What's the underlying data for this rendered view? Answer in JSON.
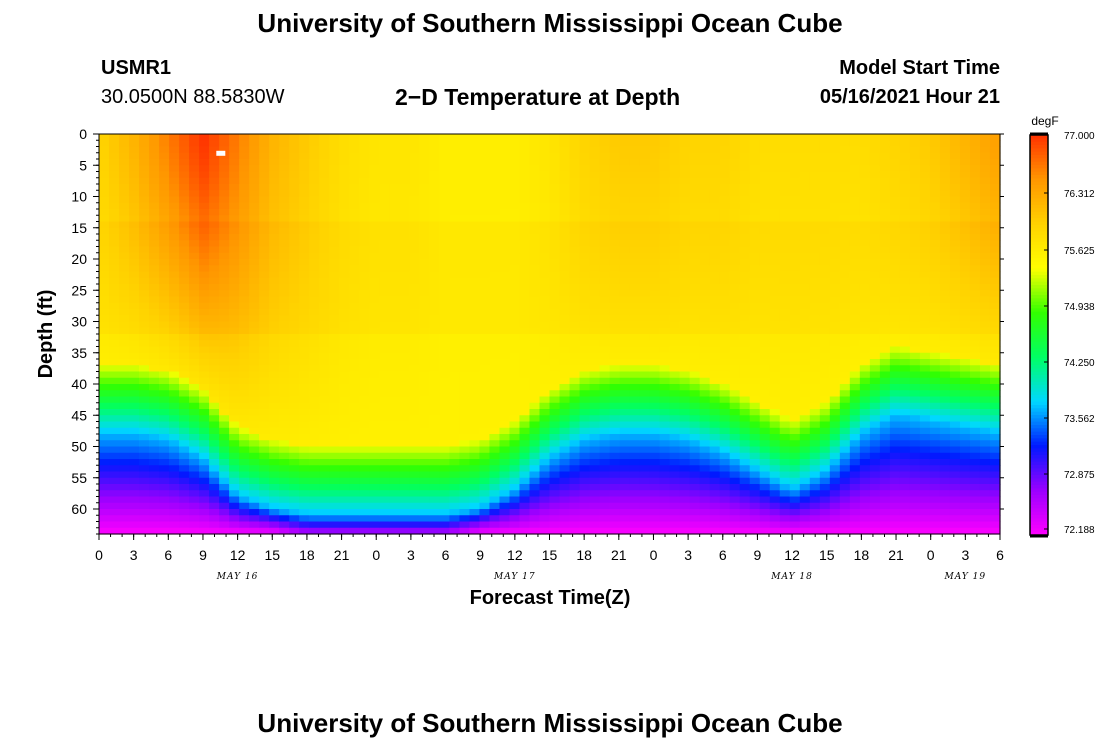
{
  "header": {
    "title_top": "University of Southern Mississippi Ocean Cube",
    "title_bottom": "University of Southern Mississippi Ocean Cube",
    "station_id": "USMR1",
    "station_coords": "30.0500N  88.5830W",
    "plot_title": "2−D Temperature at Depth",
    "model_start_label": "Model Start Time",
    "model_start_value": "05/16/2021 Hour 21"
  },
  "chart_data": {
    "type": "heatmap",
    "title": "2−D Temperature at Depth",
    "xlabel": "Forecast Time(Z)",
    "ylabel": "Depth (ft)",
    "units": "degF",
    "x_tick_labels": [
      "0",
      "3",
      "6",
      "9",
      "12",
      "15",
      "18",
      "21",
      "0",
      "3",
      "6",
      "9",
      "12",
      "15",
      "18",
      "21",
      "0",
      "3",
      "6",
      "9",
      "12",
      "15",
      "18",
      "21",
      "0",
      "3",
      "6"
    ],
    "date_labels": [
      "MAY 16",
      "MAY 17",
      "MAY 18",
      "MAY 19"
    ],
    "xlim_hours": [
      0,
      78
    ],
    "y_ticks": [
      0,
      5,
      10,
      15,
      20,
      25,
      30,
      35,
      40,
      45,
      50,
      55,
      60
    ],
    "ylim": [
      0,
      64
    ],
    "colorbar": {
      "min": 72.188,
      "max": 77.0,
      "tick_labels": [
        "77.000",
        "76.312",
        "75.625",
        "74.938",
        "74.250",
        "73.562",
        "72.875",
        "72.188"
      ],
      "colors": [
        "#ff00ff",
        "#9b00ff",
        "#0019ff",
        "#00d8ff",
        "#00ff64",
        "#32ff00",
        "#ffff00",
        "#ffd200",
        "#ff9600",
        "#ff3200"
      ]
    },
    "grid_columns_hours": [
      0,
      3,
      6,
      9,
      12,
      15,
      18,
      21,
      24,
      27,
      30,
      33,
      36,
      39,
      42,
      45,
      48,
      51,
      54,
      57,
      60,
      63,
      66,
      69,
      72,
      75,
      78
    ],
    "thermocline_depth_ft": [
      45,
      45,
      46,
      49,
      55,
      57,
      58,
      58,
      58,
      58,
      58,
      57,
      54,
      49,
      46,
      45,
      45,
      46,
      48,
      51,
      54,
      51,
      45,
      42,
      43,
      44,
      45
    ],
    "surface_temp_f": [
      75.9,
      76.2,
      76.6,
      77.0,
      76.6,
      76.2,
      76.0,
      75.8,
      75.7,
      75.7,
      75.6,
      75.6,
      75.6,
      75.7,
      75.9,
      76.0,
      76.0,
      75.9,
      75.9,
      75.8,
      75.8,
      75.8,
      75.8,
      75.9,
      76.0,
      76.2,
      76.4
    ],
    "bottom_temp_f": 72.188,
    "max_marker": {
      "hour": 10.5,
      "depth_ft": 3
    }
  }
}
